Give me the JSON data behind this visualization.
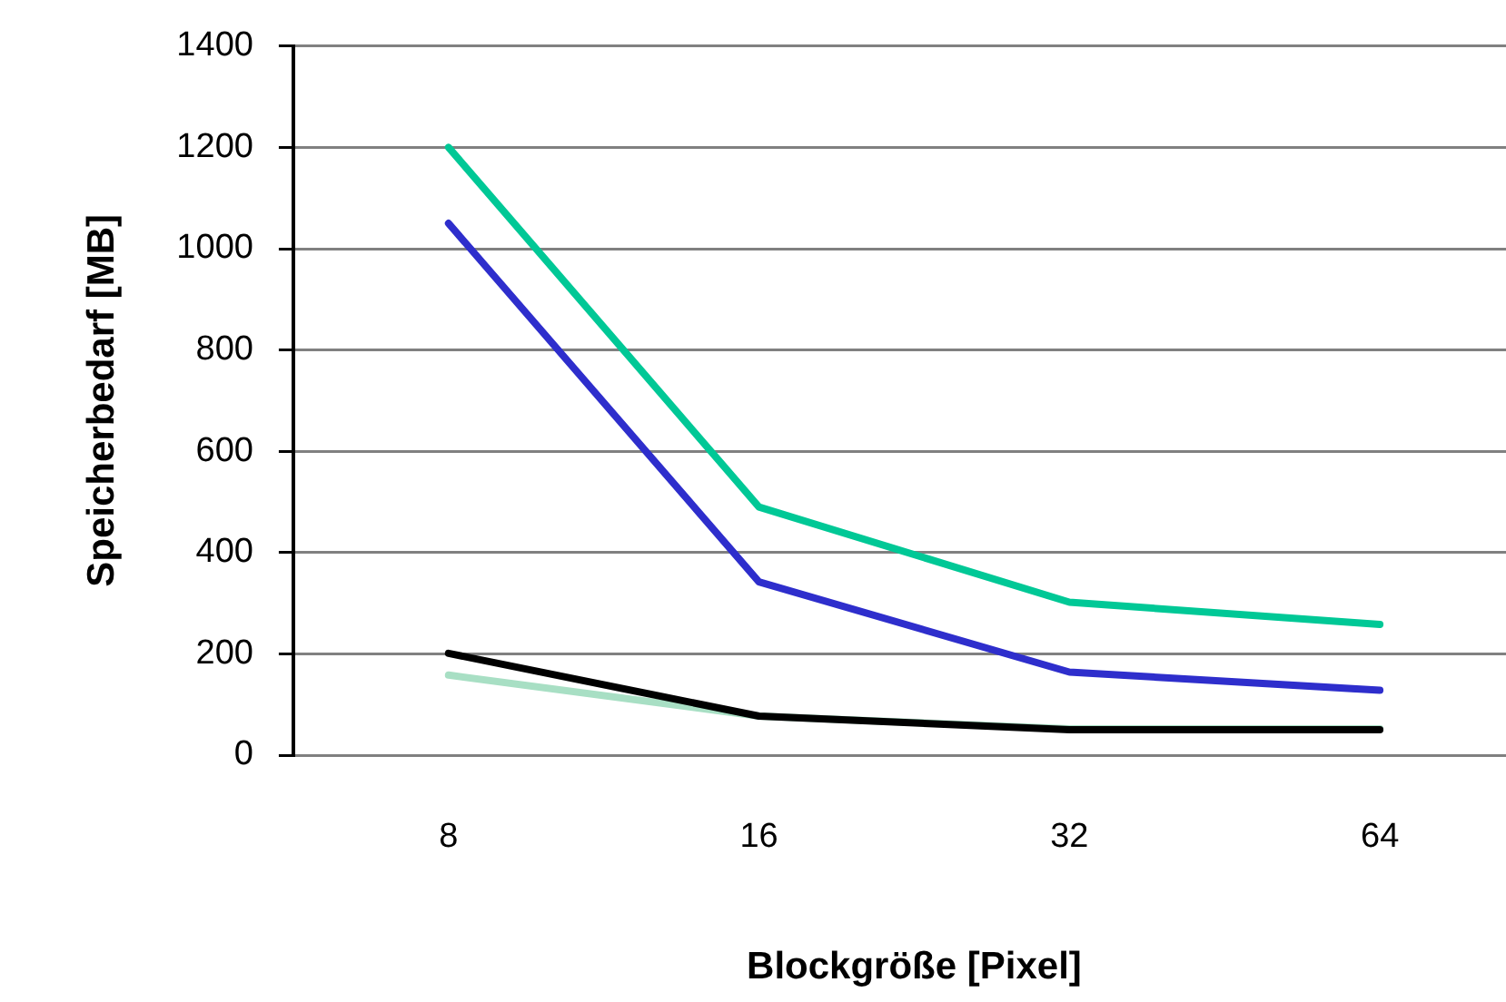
{
  "chart_data": {
    "type": "line",
    "xlabel": "Blockgröße [Pixel]",
    "ylabel": "Speicherbedarf [MB]",
    "categories": [
      "8",
      "16",
      "32",
      "64"
    ],
    "series": [
      {
        "color": "#00c896",
        "values": [
          1200,
          490,
          302,
          258
        ]
      },
      {
        "color": "#2e2ecc",
        "values": [
          1050,
          342,
          164,
          128
        ]
      },
      {
        "color": "#000000",
        "values": [
          201,
          77,
          50,
          50
        ]
      },
      {
        "color": "#a8dfc4",
        "values": [
          158,
          77,
          52,
          52
        ]
      }
    ],
    "ylim": [
      0,
      1400
    ],
    "yticks": [
      0,
      200,
      400,
      600,
      800,
      1000,
      1200,
      1400
    ],
    "grid": "y",
    "legend": false,
    "marker": "none",
    "line_style": "solid"
  }
}
